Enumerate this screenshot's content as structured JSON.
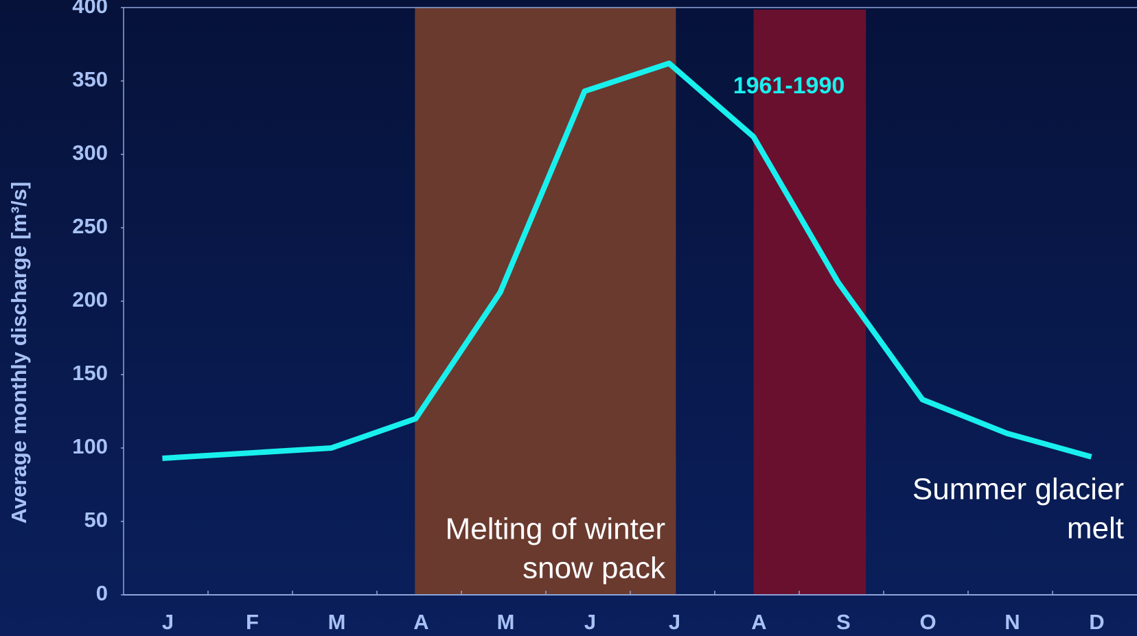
{
  "chart_data": {
    "type": "line",
    "y_label": "Average monthly discharge [m³/s]",
    "categories": [
      "J",
      "F",
      "M",
      "A",
      "M",
      "J",
      "J",
      "A",
      "S",
      "O",
      "N",
      "D"
    ],
    "series": [
      {
        "name": "1961-1990",
        "color": "#19f0ee",
        "values": [
          93,
          96.5,
          100,
          120,
          206,
          343,
          362,
          312,
          213,
          133,
          110,
          94
        ]
      }
    ],
    "ylim": [
      0,
      400
    ],
    "yticks": [
      0,
      50,
      100,
      150,
      200,
      250,
      300,
      350,
      400
    ],
    "region_labels": [
      [
        "Melting of winter",
        "snow pack"
      ],
      [
        "Summer glacier",
        "melt"
      ]
    ]
  }
}
